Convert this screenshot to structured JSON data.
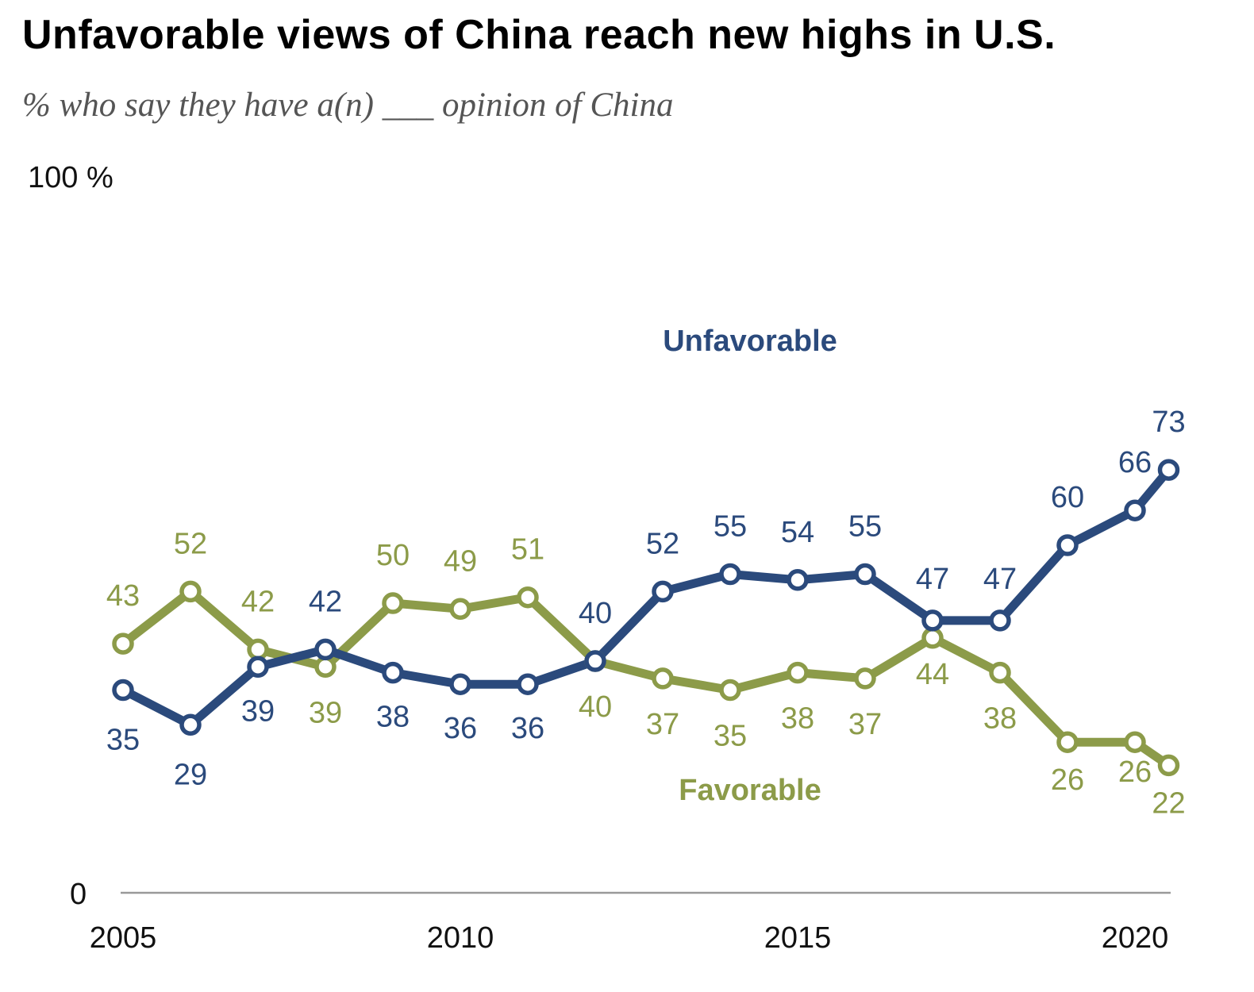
{
  "title": "Unfavorable views of China reach new highs in U.S.",
  "subtitle": "% who say they have a(n) ___ opinion of China",
  "colors": {
    "unfavorable": "#2b4a7c",
    "favorable": "#8c9b49",
    "axis": "#999999"
  },
  "chart_data": {
    "type": "line",
    "ylim": [
      0,
      100
    ],
    "y_tick_labels": [
      "0",
      "100 %"
    ],
    "x_tick_labels": [
      "2005",
      "2010",
      "2015",
      "2020"
    ],
    "x_tick_values": [
      2005,
      2010,
      2015,
      2020
    ],
    "x": [
      2005,
      2006,
      2007,
      2008,
      2009,
      2010,
      2011,
      2012,
      2013,
      2014,
      2015,
      2016,
      2017,
      2018,
      2019,
      2020,
      2020.5
    ],
    "grid": false,
    "series": [
      {
        "name": "Unfavorable",
        "values": [
          35,
          29,
          39,
          42,
          38,
          36,
          36,
          40,
          52,
          55,
          54,
          55,
          47,
          47,
          60,
          66,
          73
        ]
      },
      {
        "name": "Favorable",
        "values": [
          43,
          52,
          42,
          39,
          50,
          49,
          51,
          40,
          37,
          35,
          38,
          37,
          44,
          38,
          26,
          26,
          22
        ]
      }
    ]
  }
}
